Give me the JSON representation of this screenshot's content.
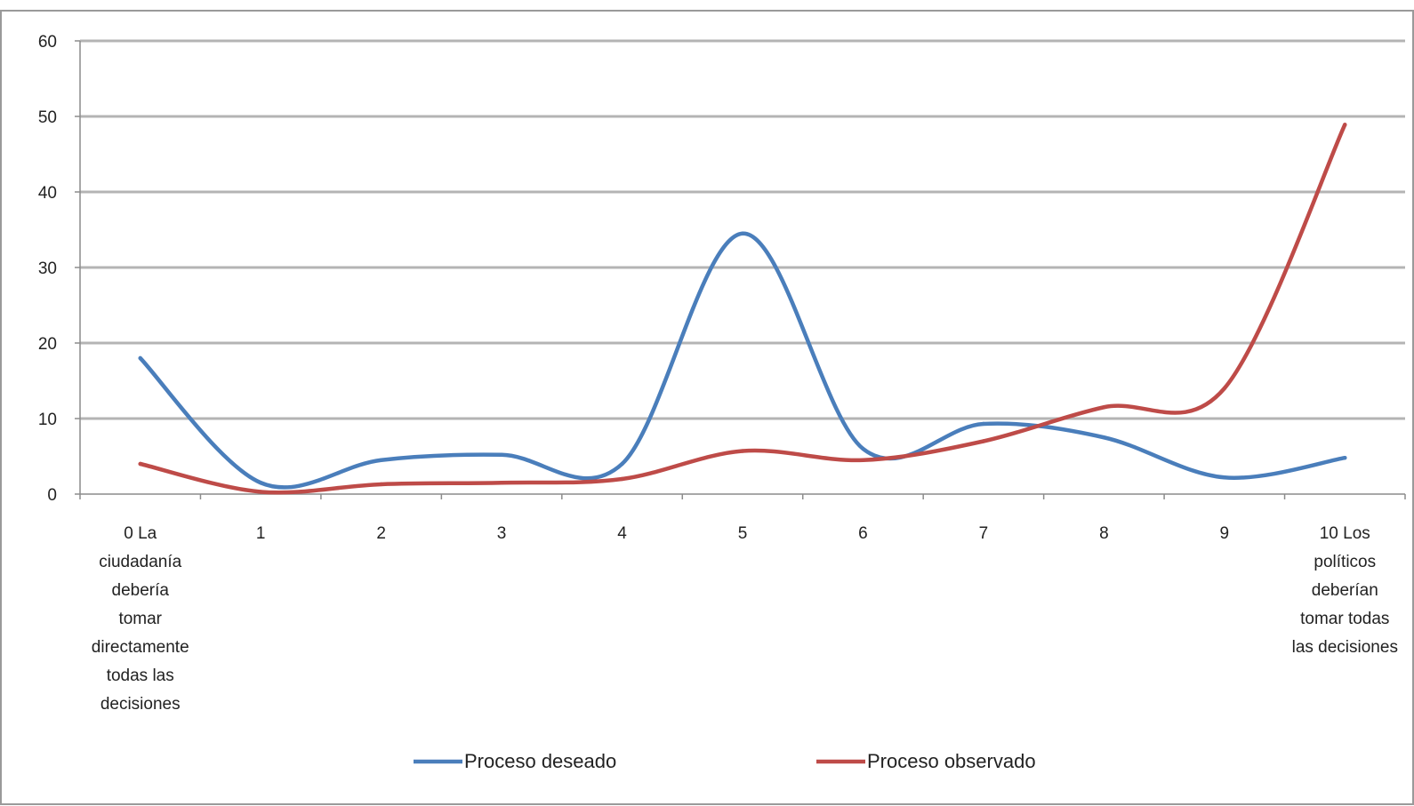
{
  "chart_data": {
    "type": "line",
    "smooth": true,
    "categories": [
      "0 La ciudadanía debería tomar directamente todas las decisiones",
      "1",
      "2",
      "3",
      "4",
      "5",
      "6",
      "7",
      "8",
      "9",
      "10 Los políticos deberían tomar todas las decisiones"
    ],
    "category_lines": [
      [
        "0 La",
        "ciudadanía",
        "debería",
        "tomar",
        "directamente",
        "todas las",
        "decisiones"
      ],
      [
        "1"
      ],
      [
        "2"
      ],
      [
        "3"
      ],
      [
        "4"
      ],
      [
        "5"
      ],
      [
        "6"
      ],
      [
        "7"
      ],
      [
        "8"
      ],
      [
        "9"
      ],
      [
        "10 Los",
        "políticos",
        "deberían",
        "tomar todas",
        "las decisiones"
      ]
    ],
    "series": [
      {
        "name": "Proceso deseado",
        "color": "#4a7ebb",
        "values": [
          18,
          1.5,
          4.5,
          5.2,
          4,
          34.5,
          6,
          9.3,
          7.5,
          2.2,
          4.8
        ]
      },
      {
        "name": "Proceso observado",
        "color": "#be4b48",
        "values": [
          4,
          0.3,
          1.3,
          1.5,
          2,
          5.7,
          4.5,
          7,
          11.5,
          14,
          48.9
        ]
      }
    ],
    "ylim": [
      0,
      60
    ],
    "yticks": [
      "0",
      "10",
      "20",
      "30",
      "40",
      "50",
      "60"
    ],
    "grid": true,
    "legend_position": "bottom",
    "title": "",
    "xlabel": "",
    "ylabel": ""
  }
}
